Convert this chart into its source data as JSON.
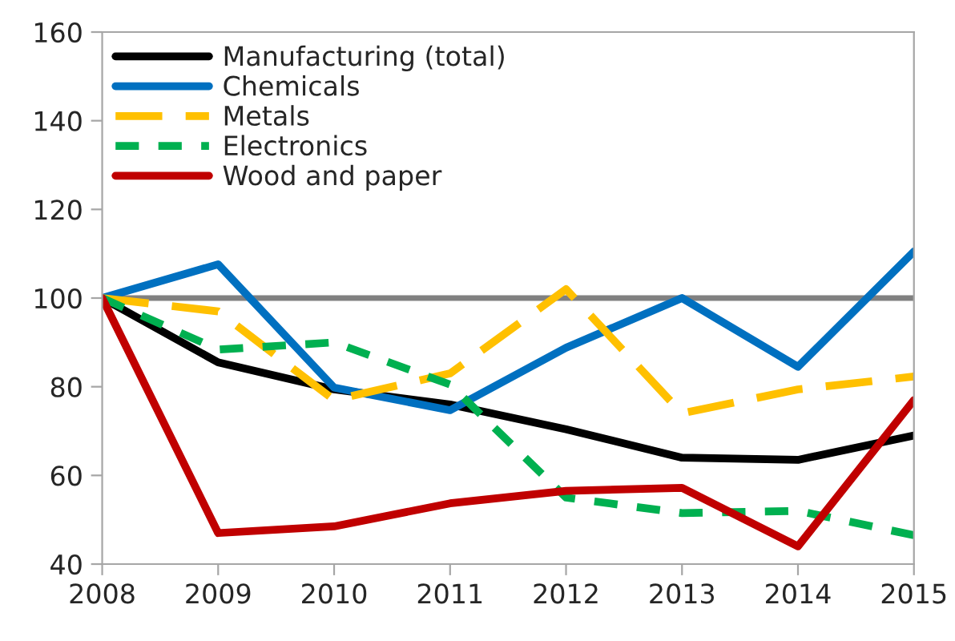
{
  "chart_data": {
    "type": "line",
    "x": [
      2008,
      2009,
      2010,
      2011,
      2012,
      2013,
      2014,
      2015
    ],
    "series": [
      {
        "name": "Manufacturing (total)",
        "color": "#000000",
        "line_style": "solid",
        "values": [
          100,
          85.5,
          79.4,
          76,
          70.4,
          64,
          63.5,
          69
        ]
      },
      {
        "name": "Chemicals",
        "color": "#0070c0",
        "line_style": "solid",
        "values": [
          100,
          107.6,
          79.8,
          74.7,
          88.8,
          100,
          84.5,
          110.5
        ]
      },
      {
        "name": "Metals",
        "color": "#ffc000",
        "line_style": "dashed",
        "values": [
          100,
          97,
          77,
          83,
          102,
          74,
          79.4,
          82.3
        ]
      },
      {
        "name": "Electronics",
        "color": "#00b050",
        "line_style": "dotted",
        "values": [
          100,
          88.4,
          90,
          80.5,
          55,
          51.5,
          52,
          46.5
        ]
      },
      {
        "name": "Wood and paper",
        "color": "#c00000",
        "line_style": "solid",
        "values": [
          100,
          47,
          48.5,
          53.7,
          56.5,
          57.2,
          44,
          77
        ]
      }
    ],
    "xlim": [
      2008,
      2015
    ],
    "xticks": [
      2008,
      2009,
      2010,
      2011,
      2012,
      2013,
      2014,
      2015
    ],
    "ylim": [
      40,
      160
    ],
    "yticks": [
      40,
      60,
      80,
      100,
      120,
      140,
      160
    ],
    "ref_lines": [
      {
        "axis": "y",
        "value": 100,
        "color": "#808080"
      }
    ],
    "legend": "top left",
    "grid": false
  }
}
